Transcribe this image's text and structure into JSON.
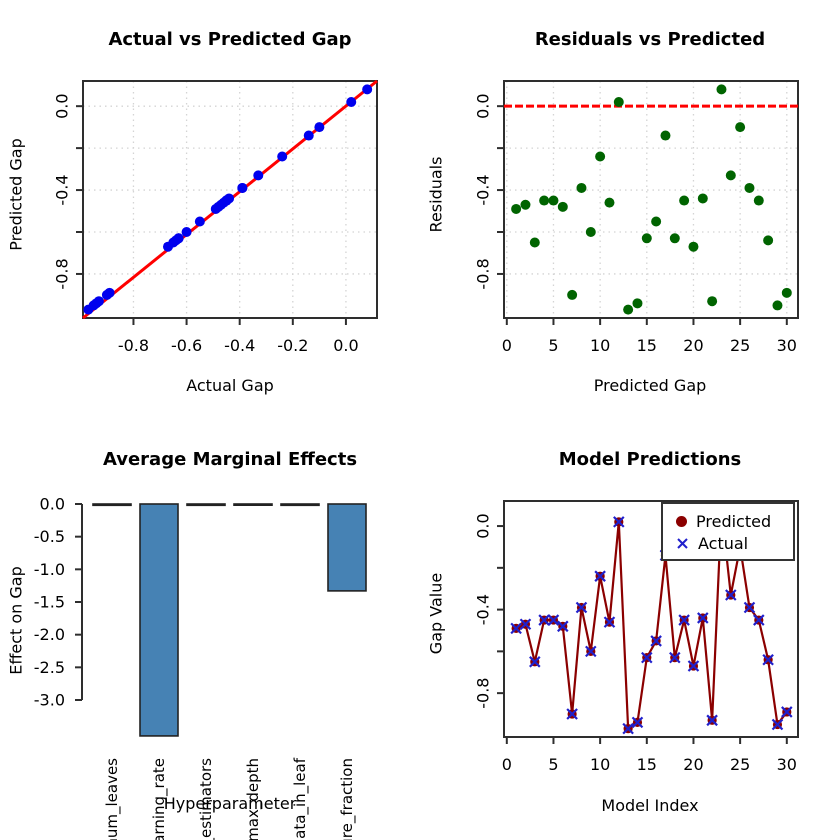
{
  "chart_data": [
    {
      "type": "scatter",
      "title": "Actual vs Predicted Gap",
      "xlabel": "Actual Gap",
      "ylabel": "Predicted Gap",
      "xlim": [
        -0.99,
        0.117
      ],
      "ylim": [
        -1.01,
        0.12
      ],
      "xticks": [
        -0.8,
        -0.6,
        -0.4,
        -0.2,
        0.0
      ],
      "xtick_labels": [
        "-0.8",
        "-0.6",
        "-0.4",
        "-0.2",
        "0.0"
      ],
      "yticks": [
        0.0,
        -0.4,
        -0.8
      ],
      "ytick_labels": [
        "0.0",
        "-0.4",
        "-0.8"
      ],
      "yticks_minor": [
        -0.2,
        -0.6
      ],
      "grid": true,
      "identity_line_color": "#FF0000",
      "point_color": "#0000EE",
      "points_equal_xy": true,
      "values": [
        -0.49,
        -0.47,
        -0.65,
        -0.45,
        -0.45,
        -0.48,
        -0.9,
        -0.39,
        -0.6,
        -0.24,
        -0.46,
        0.02,
        -0.97,
        -0.94,
        -0.63,
        -0.55,
        -0.14,
        -0.63,
        -0.45,
        -0.67,
        -0.44,
        -0.93,
        0.08,
        -0.33,
        -0.1,
        -0.39,
        -0.45,
        -0.64,
        -0.95,
        -0.89
      ]
    },
    {
      "type": "scatter",
      "title": "Residuals vs Predicted",
      "xlabel": "Predicted Gap",
      "ylabel": "Residuals",
      "xlim": [
        -0.3,
        31.2
      ],
      "ylim": [
        -1.01,
        0.12
      ],
      "xticks": [
        0,
        5,
        10,
        15,
        20,
        25,
        30
      ],
      "xtick_labels": [
        "0",
        "5",
        "10",
        "15",
        "20",
        "25",
        "30"
      ],
      "yticks": [
        0.0,
        -0.4,
        -0.8
      ],
      "ytick_labels": [
        "0.0",
        "-0.4",
        "-0.8"
      ],
      "yticks_minor": [
        -0.2,
        -0.6
      ],
      "grid": true,
      "hline": {
        "y": 0,
        "color": "#FF0000",
        "style": "dashed"
      },
      "point_color": "#006400",
      "x": [
        1,
        2,
        3,
        4,
        5,
        6,
        7,
        8,
        9,
        10,
        11,
        12,
        13,
        14,
        15,
        16,
        17,
        18,
        19,
        20,
        21,
        22,
        23,
        24,
        25,
        26,
        27,
        28,
        29,
        30
      ],
      "y": [
        -0.49,
        -0.47,
        -0.65,
        -0.45,
        -0.45,
        -0.48,
        -0.9,
        -0.39,
        -0.6,
        -0.24,
        -0.46,
        0.02,
        -0.97,
        -0.94,
        -0.63,
        -0.55,
        -0.14,
        -0.63,
        -0.45,
        -0.67,
        -0.44,
        -0.93,
        0.08,
        -0.33,
        -0.1,
        -0.39,
        -0.45,
        -0.64,
        -0.95,
        -0.89
      ]
    },
    {
      "type": "bar",
      "title": "Average Marginal Effects",
      "xlabel": "Hyperparameter",
      "ylabel": "Effect on Gap",
      "categories": [
        "num_leaves",
        "learning_rate",
        "n_estimators",
        "max_depth",
        "data_in_leaf",
        "feature_fraction"
      ],
      "values": [
        -0.02,
        -3.55,
        -0.02,
        -0.01,
        -0.02,
        -1.33
      ],
      "ylim": [
        -3.0,
        0.0
      ],
      "yticks": [
        0.0,
        -0.5,
        -1.0,
        -1.5,
        -2.0,
        -2.5,
        -3.0
      ],
      "ytick_labels": [
        "0.0",
        "-0.5",
        "-1.0",
        "-1.5",
        "-2.0",
        "-2.5",
        "-3.0"
      ],
      "grid": false,
      "bar_color": "#4682B4",
      "bar_border": "#222222"
    },
    {
      "type": "line",
      "title": "Model Predictions",
      "xlabel": "Model Index",
      "ylabel": "Gap Value",
      "xlim": [
        -0.3,
        31.2
      ],
      "ylim": [
        -1.01,
        0.12
      ],
      "xticks": [
        0,
        5,
        10,
        15,
        20,
        25,
        30
      ],
      "xtick_labels": [
        "0",
        "5",
        "10",
        "15",
        "20",
        "25",
        "30"
      ],
      "yticks": [
        0.0,
        -0.4,
        -0.8
      ],
      "ytick_labels": [
        "0.0",
        "-0.4",
        "-0.8"
      ],
      "yticks_minor": [
        -0.2,
        -0.6
      ],
      "grid": false,
      "line_color": "#8B0000",
      "x": [
        1,
        2,
        3,
        4,
        5,
        6,
        7,
        8,
        9,
        10,
        11,
        12,
        13,
        14,
        15,
        16,
        17,
        18,
        19,
        20,
        21,
        22,
        23,
        24,
        25,
        26,
        27,
        28,
        29,
        30
      ],
      "y": [
        -0.49,
        -0.47,
        -0.65,
        -0.45,
        -0.45,
        -0.48,
        -0.9,
        -0.39,
        -0.6,
        -0.24,
        -0.46,
        0.02,
        -0.97,
        -0.94,
        -0.63,
        -0.55,
        -0.14,
        -0.63,
        -0.45,
        -0.67,
        -0.44,
        -0.93,
        0.08,
        -0.33,
        -0.1,
        -0.39,
        -0.45,
        -0.64,
        -0.95,
        -0.89
      ],
      "legend": {
        "position": "topright",
        "items": [
          {
            "label": "Predicted",
            "marker": "circle",
            "color": "#8B0000"
          },
          {
            "label": "Actual",
            "marker": "x",
            "color": "#2020CC"
          }
        ]
      }
    }
  ]
}
